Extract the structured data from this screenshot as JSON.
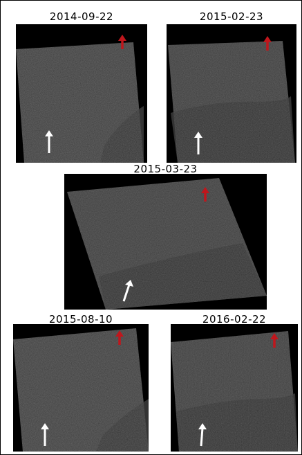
{
  "panels": [
    {
      "date": "2014-09-22",
      "arrows": [
        "red-north-arrow",
        "white-arrow"
      ]
    },
    {
      "date": "2015-02-23",
      "arrows": [
        "red-north-arrow",
        "white-arrow"
      ]
    },
    {
      "date": "2015-03-23",
      "arrows": [
        "red-north-arrow",
        "white-arrow"
      ]
    },
    {
      "date": "2015-08-10",
      "arrows": [
        "red-north-arrow",
        "white-arrow"
      ]
    },
    {
      "date": "2016-02-22",
      "arrows": [
        "red-north-arrow",
        "white-arrow"
      ]
    }
  ],
  "colors": {
    "background": "#ffffff",
    "panel_background": "#000000",
    "land": "#3a3a3a",
    "water": "#323232",
    "red_arrow": "#c0161c",
    "white_arrow": "#ffffff"
  }
}
